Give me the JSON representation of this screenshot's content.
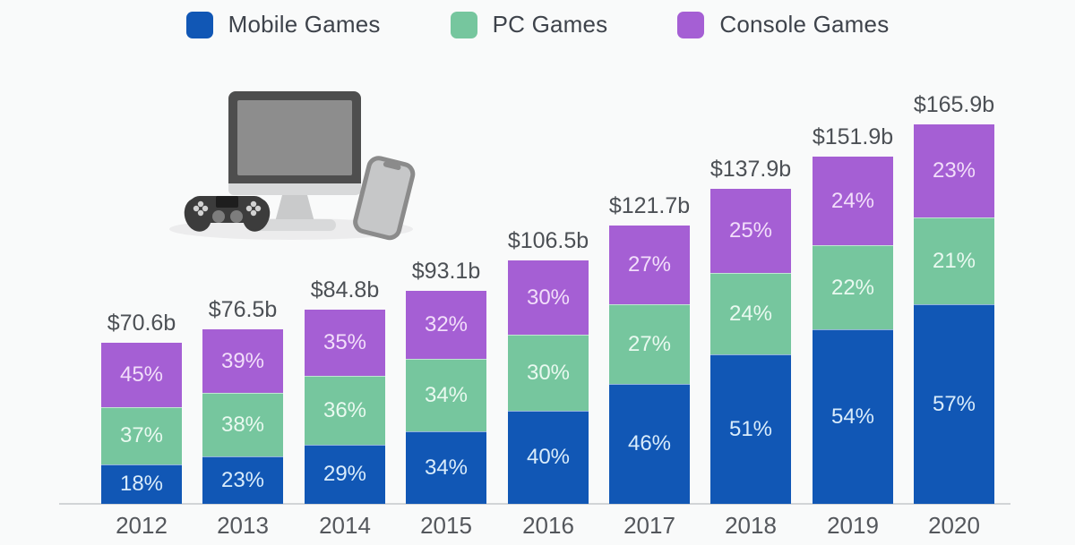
{
  "page": {
    "background": "#f9fafa"
  },
  "legend": {
    "items": [
      {
        "label": "Mobile Games",
        "color": "#1157b5"
      },
      {
        "label": "PC Games",
        "color": "#76c69e"
      },
      {
        "label": "Console Games",
        "color": "#a55fd4"
      }
    ]
  },
  "illustration": {
    "icons": [
      "gamepad-icon",
      "desktop-monitor-icon",
      "smartphone-icon"
    ]
  },
  "chart_data": {
    "type": "bar",
    "stacked": true,
    "title": "",
    "categories": [
      "2012",
      "2013",
      "2014",
      "2015",
      "2016",
      "2017",
      "2018",
      "2019",
      "2020"
    ],
    "totals_label": [
      "$70.6b",
      "$76.5b",
      "$84.8b",
      "$93.1b",
      "$106.5b",
      "$121.7b",
      "$137.9b",
      "$151.9b",
      "$165.9b"
    ],
    "totals_billion_usd": [
      70.6,
      76.5,
      84.8,
      93.1,
      106.5,
      121.7,
      137.9,
      151.9,
      165.9
    ],
    "series": [
      {
        "name": "Mobile Games",
        "color": "#1157b5",
        "unit": "%",
        "values": [
          18,
          23,
          29,
          34,
          40,
          46,
          51,
          54,
          57
        ]
      },
      {
        "name": "PC Games",
        "color": "#76c69e",
        "unit": "%",
        "values": [
          37,
          38,
          36,
          34,
          30,
          27,
          24,
          22,
          21
        ]
      },
      {
        "name": "Console Games",
        "color": "#a55fd4",
        "unit": "%",
        "values": [
          45,
          39,
          35,
          32,
          30,
          27,
          25,
          24,
          23
        ]
      }
    ],
    "xlabel": "",
    "ylabel": "",
    "legend_position": "top",
    "grid": false,
    "axis_line_color": "#d2d4d6"
  }
}
